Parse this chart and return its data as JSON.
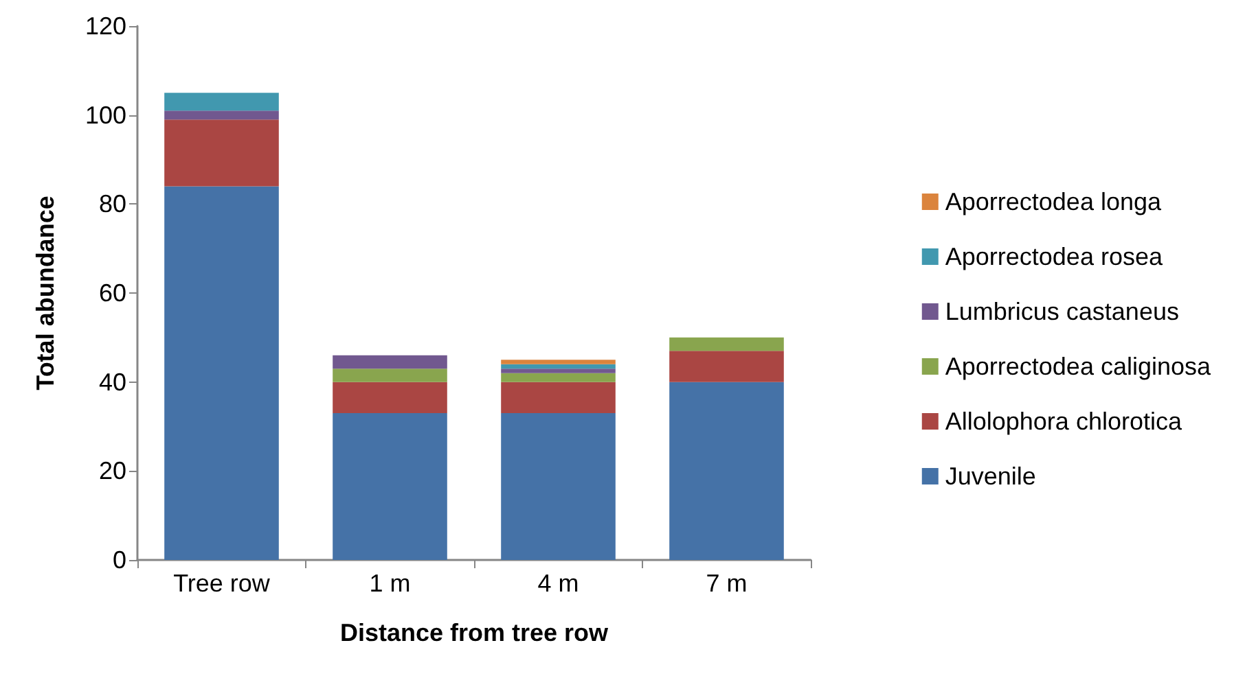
{
  "chart_data": {
    "type": "bar",
    "stacked": true,
    "xlabel": "Distance from tree row",
    "ylabel": "Total abundance",
    "categories": [
      "Tree row",
      "1 m",
      "4 m",
      "7 m"
    ],
    "ylim": [
      0,
      120
    ],
    "yticks": [
      0,
      20,
      40,
      60,
      80,
      100,
      120
    ],
    "grid": false,
    "legend": "right",
    "series": [
      {
        "name": "Juvenile",
        "color": "#4572a7",
        "values": [
          84,
          33,
          33,
          40
        ]
      },
      {
        "name": "Allolophora chlorotica",
        "color": "#aa4643",
        "values": [
          15,
          7,
          7,
          7
        ]
      },
      {
        "name": "Aporrectodea caliginosa",
        "color": "#89a54e",
        "values": [
          0,
          3,
          2,
          3
        ]
      },
      {
        "name": "Lumbricus castaneus",
        "color": "#71588f",
        "values": [
          2,
          3,
          1,
          0
        ]
      },
      {
        "name": "Aporrectodea rosea",
        "color": "#4198af",
        "values": [
          4,
          0,
          1,
          0
        ]
      },
      {
        "name": "Aporrectodea longa",
        "color": "#db843d",
        "values": [
          0,
          0,
          1,
          0
        ]
      }
    ]
  }
}
